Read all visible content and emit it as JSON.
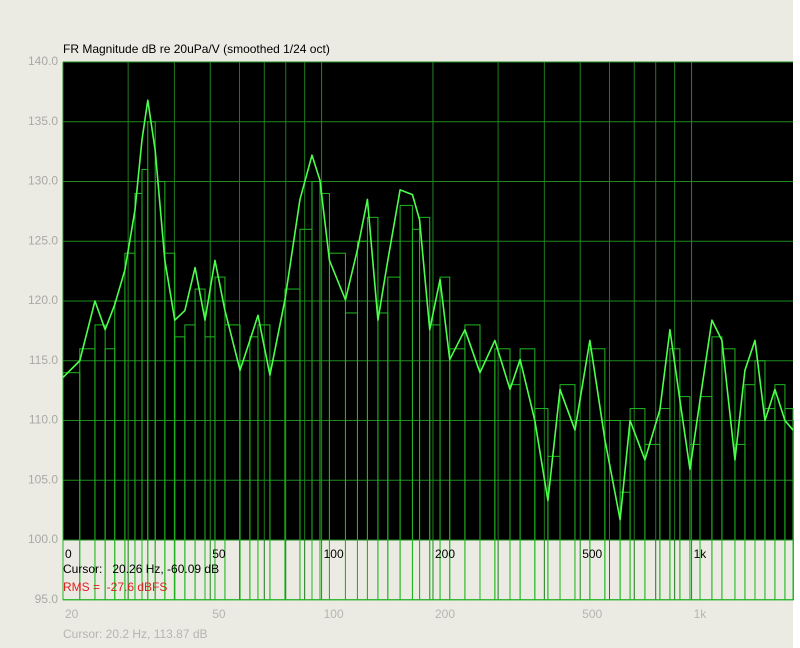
{
  "chart_data": {
    "type": "line",
    "title": "FR Magnitude dB re 20uPa/V (smoothed 1/24 oct)",
    "xscale": "log",
    "grid": true,
    "xlim": [
      20,
      1880
    ],
    "ylim": [
      95,
      140
    ],
    "yticks": [
      {
        "value": 95,
        "label": "95.0"
      },
      {
        "value": 100,
        "label": "100.0"
      },
      {
        "value": 105,
        "label": "105.0"
      },
      {
        "value": 110,
        "label": "110.0"
      },
      {
        "value": 115,
        "label": "115.0"
      },
      {
        "value": 120,
        "label": "120.0"
      },
      {
        "value": 125,
        "label": "125.0"
      },
      {
        "value": 130,
        "label": "130.0"
      },
      {
        "value": 135,
        "label": "135.0"
      },
      {
        "value": 140,
        "label": "140.0"
      }
    ],
    "xticks": [
      {
        "value": 20,
        "label": "0"
      },
      50,
      100,
      200,
      500,
      {
        "value": 1000,
        "label": "1k"
      }
    ],
    "xticks2": [
      20,
      50,
      100,
      200,
      500,
      {
        "value": 1000,
        "label": "1k"
      }
    ],
    "minor_xticks": [
      30,
      40,
      60,
      70,
      80,
      90,
      300,
      400,
      600,
      700,
      800,
      900
    ],
    "cursor": "Cursor:   20.26 Hz, -60.09 dB",
    "rms": "RMS =  -27.6 dBFS",
    "cursor2": "Cursor: 20.2 Hz, 113.87 dB",
    "x": [
      20,
      22.2,
      24.4,
      26.0,
      27.6,
      29.4,
      31.3,
      32.7,
      33.9,
      35.5,
      37.7,
      40.1,
      42.7,
      45.5,
      48.4,
      51.5,
      54.8,
      60.2,
      64.0,
      67.3,
      72.5,
      79.6,
      87.4,
      94.2,
      99.0,
      105,
      116,
      125,
      133,
      142,
      151,
      163,
      176,
      184,
      196,
      209,
      222,
      244,
      268,
      294,
      323,
      344,
      377,
      409,
      441,
      484,
      531,
      583,
      641,
      682,
      748,
      821,
      874,
      930,
      990,
      1054,
      1135,
      1208,
      1310,
      1394,
      1484,
      1579,
      1680,
      1788,
      1880
    ],
    "series": [
      {
        "color": "#1fb81f",
        "style": "step",
        "values": [
          114,
          116,
          118,
          116,
          120,
          124,
          129,
          131,
          135,
          130,
          124,
          117,
          118,
          121,
          117,
          122,
          118,
          115,
          117,
          118,
          115,
          121,
          126,
          130,
          129,
          124,
          119,
          125,
          127,
          119,
          122,
          128,
          126,
          127,
          118,
          122,
          116,
          118,
          115,
          116,
          113,
          116,
          111,
          107,
          113,
          110,
          116,
          110,
          104,
          111,
          108,
          111,
          116,
          112,
          108,
          112,
          117,
          116,
          108,
          113,
          115,
          111,
          113,
          111,
          110
        ]
      },
      {
        "color": "#4dff4d",
        "style": "line",
        "values": [
          113.6,
          115.0,
          120.0,
          117.6,
          119.7,
          122.6,
          127.6,
          133.5,
          136.8,
          132.6,
          123.4,
          118.4,
          119.2,
          122.8,
          118.4,
          123.4,
          119.2,
          114.2,
          116.7,
          118.8,
          113.8,
          120.1,
          128.5,
          132.2,
          130.1,
          123.4,
          120.1,
          124.3,
          128.5,
          118.4,
          123.4,
          129.3,
          128.9,
          126.8,
          117.6,
          121.8,
          115.1,
          117.6,
          114.0,
          116.7,
          112.6,
          115.1,
          110.0,
          103.3,
          112.6,
          109.2,
          116.7,
          108.4,
          101.7,
          110.0,
          106.7,
          110.9,
          117.6,
          111.7,
          105.9,
          111.7,
          118.4,
          116.7,
          106.7,
          114.2,
          116.7,
          110.0,
          112.6,
          110.0,
          109.2
        ]
      }
    ]
  }
}
